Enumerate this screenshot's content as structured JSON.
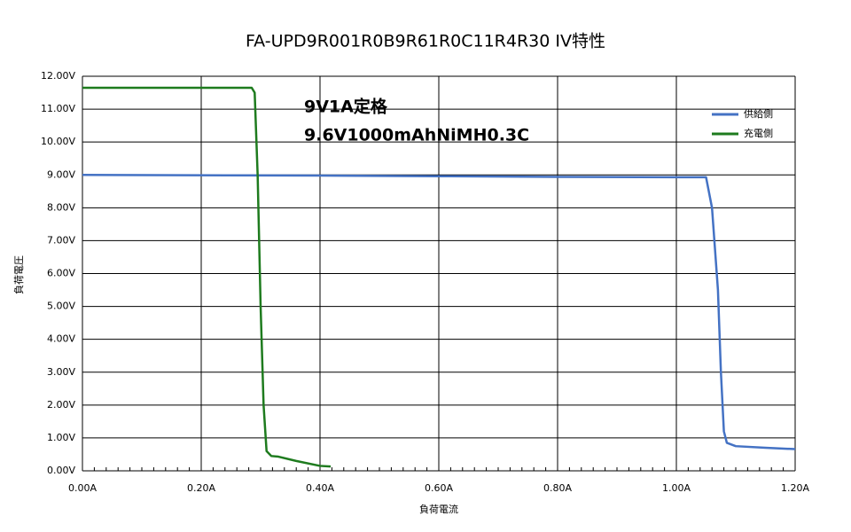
{
  "chart_data": {
    "type": "line",
    "title": "FA-UPD9R001R0B9R61R0C11R4R30 IV特性",
    "xlabel": "負荷電流",
    "ylabel": "負荷電圧",
    "annotations": [
      "9V1A定格",
      "9.6V1000mAhNiMH0.3C"
    ],
    "xlim": [
      0,
      1.2
    ],
    "ylim": [
      0,
      12
    ],
    "xticks": [
      {
        "value": 0,
        "label": "0.00A"
      },
      {
        "value": 0.2,
        "label": "0.20A"
      },
      {
        "value": 0.4,
        "label": "0.40A"
      },
      {
        "value": 0.6,
        "label": "0.60A"
      },
      {
        "value": 0.8,
        "label": "0.80A"
      },
      {
        "value": 1.0,
        "label": "1.00A"
      },
      {
        "value": 1.2,
        "label": "1.20A"
      }
    ],
    "yticks": [
      {
        "value": 0,
        "label": "0.00V"
      },
      {
        "value": 1,
        "label": "1.00V"
      },
      {
        "value": 2,
        "label": "2.00V"
      },
      {
        "value": 3,
        "label": "3.00V"
      },
      {
        "value": 4,
        "label": "4.00V"
      },
      {
        "value": 5,
        "label": "5.00V"
      },
      {
        "value": 6,
        "label": "6.00V"
      },
      {
        "value": 7,
        "label": "7.00V"
      },
      {
        "value": 8,
        "label": "8.00V"
      },
      {
        "value": 9,
        "label": "9.00V"
      },
      {
        "value": 10,
        "label": "10.00V"
      },
      {
        "value": 11,
        "label": "11.00V"
      },
      {
        "value": 12,
        "label": "12.00V"
      }
    ],
    "grid": true,
    "legend": "upper right",
    "series": [
      {
        "name": "供給側",
        "color": "#4472c4",
        "x": [
          0,
          0.4,
          0.6,
          0.8,
          1.0,
          1.05,
          1.06,
          1.07,
          1.075,
          1.08,
          1.085,
          1.1,
          1.15,
          1.2
        ],
        "values": [
          9.0,
          8.98,
          8.96,
          8.94,
          8.93,
          8.93,
          8.0,
          5.5,
          3.0,
          1.2,
          0.85,
          0.75,
          0.7,
          0.66
        ]
      },
      {
        "name": "充電側",
        "color": "#1e7b1e",
        "x": [
          0,
          0.285,
          0.29,
          0.295,
          0.3,
          0.305,
          0.31,
          0.318,
          0.33,
          0.36,
          0.4,
          0.418
        ],
        "values": [
          11.65,
          11.65,
          11.5,
          9.0,
          5.0,
          2.0,
          0.6,
          0.45,
          0.43,
          0.3,
          0.15,
          0.13
        ]
      }
    ]
  }
}
